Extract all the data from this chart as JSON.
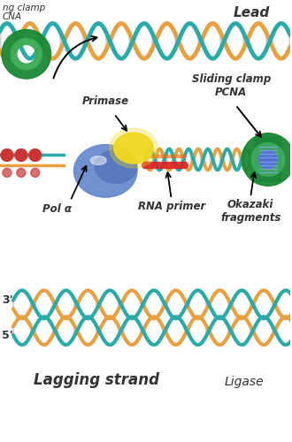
{
  "bg_color": "#ffffff",
  "title_text": "Lagging strand",
  "lead_label": "Lead",
  "ligase_label": "Ligase",
  "label_sliding_clamp": "Sliding clamp\nPCNA",
  "label_primase": "Primase",
  "label_rna_primer": "RNA primer",
  "label_okazaki": "Okazaki\nfragments",
  "label_pol_a": "Pol α",
  "label_clamp_pcna": "ng clamp\nCNA",
  "label_3": "3'",
  "label_5": "5'",
  "teal_color": "#2aabaa",
  "orange_color": "#e8a040",
  "green_color": "#3aaa55",
  "blue_color": "#5577cc",
  "yellow_color": "#f0d820",
  "red_color": "#cc3333",
  "dark_green_color": "#1a8833",
  "text_color": "#333333",
  "gray_color": "#888888"
}
